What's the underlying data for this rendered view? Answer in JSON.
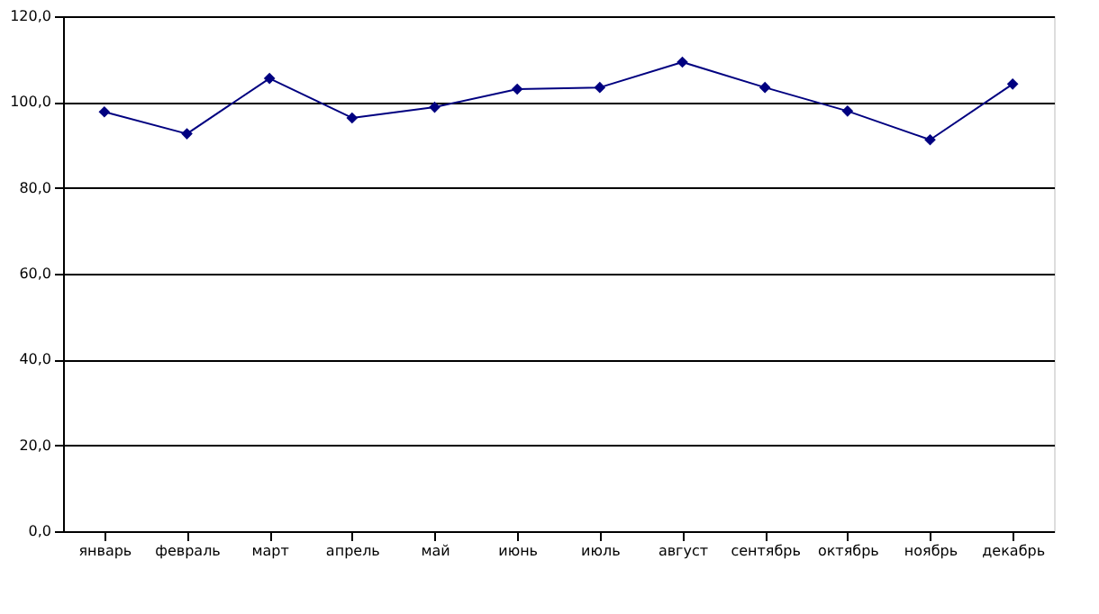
{
  "chart_data": {
    "type": "line",
    "categories": [
      "январь",
      "февраль",
      "март",
      "апрель",
      "май",
      "июнь",
      "июль",
      "август",
      "сентябрь",
      "октябрь",
      "ноябрь",
      "декабрь"
    ],
    "series": [
      {
        "color": "#000080",
        "values": [
          97.7,
          92.6,
          105.5,
          96.3,
          98.8,
          103.0,
          103.4,
          109.3,
          103.4,
          97.9,
          91.2,
          104.2
        ]
      }
    ],
    "ylim": [
      0,
      120
    ],
    "yticks": [
      {
        "value": 0,
        "label": "0,0"
      },
      {
        "value": 20,
        "label": "20,0"
      },
      {
        "value": 40,
        "label": "40,0"
      },
      {
        "value": 60,
        "label": "60,0"
      },
      {
        "value": 80,
        "label": "80,0"
      },
      {
        "value": 100,
        "label": "100,0"
      },
      {
        "value": 120,
        "label": "120,0"
      }
    ],
    "grid": "y",
    "marker": "diamond",
    "line_style": "solid"
  }
}
